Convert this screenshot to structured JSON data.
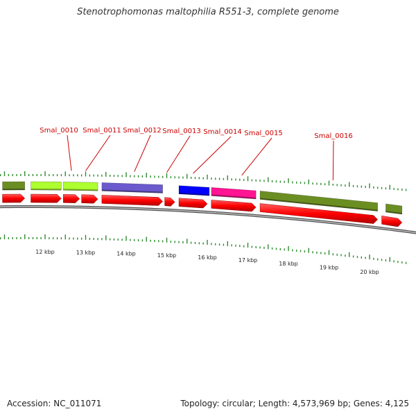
{
  "title": "Stenotrophomonas maltophilia R551-3, complete genome",
  "accession": "Accession: NC_011071",
  "summary": "Topology: circular; Length: 4,573,969 bp; Genes: 4,125",
  "colors": {
    "gene_label": "#cc0000",
    "cds_forward": "#ff0000",
    "ticks": "#2e8b2e",
    "backbone": "#888888",
    "olive": "#6b8e23",
    "lime": "#adff2f",
    "slate": "#6a5acd",
    "blue": "#0000ff",
    "pink": "#ff1493"
  },
  "gene_labels": [
    {
      "name": "Smal_0010",
      "kbp": 12.65
    },
    {
      "name": "Smal_0011",
      "kbp": 13.0
    },
    {
      "name": "Smal_0012",
      "kbp": 14.2
    },
    {
      "name": "Smal_0013",
      "kbp": 15.0
    },
    {
      "name": "Smal_0014",
      "kbp": 15.65
    },
    {
      "name": "Smal_0015",
      "kbp": 16.85
    },
    {
      "name": "Smal_0016",
      "kbp": 19.1
    }
  ],
  "kbp_ticks": [
    "12 kbp",
    "13 kbp",
    "14 kbp",
    "15 kbp",
    "16 kbp",
    "17 kbp",
    "18 kbp",
    "19 kbp",
    "20 kbp"
  ],
  "cds_blocks": [
    {
      "start": 10.95,
      "end": 11.5
    },
    {
      "start": 11.65,
      "end": 12.4
    },
    {
      "start": 12.45,
      "end": 12.85
    },
    {
      "start": 12.9,
      "end": 13.3
    },
    {
      "start": 13.4,
      "end": 14.9
    },
    {
      "start": 14.95,
      "end": 15.2
    },
    {
      "start": 15.3,
      "end": 16.0
    },
    {
      "start": 16.1,
      "end": 17.2
    },
    {
      "start": 17.3,
      "end": 20.2
    },
    {
      "start": 20.3,
      "end": 20.8
    }
  ],
  "feature_blocks": [
    {
      "start": 10.95,
      "end": 11.5,
      "color": "olive"
    },
    {
      "start": 11.65,
      "end": 12.4,
      "color": "lime"
    },
    {
      "start": 12.45,
      "end": 13.3,
      "color": "lime"
    },
    {
      "start": 13.4,
      "end": 14.9,
      "color": "slate"
    },
    {
      "start": 15.3,
      "end": 16.05,
      "color": "blue"
    },
    {
      "start": 16.1,
      "end": 17.2,
      "color": "pink"
    },
    {
      "start": 17.3,
      "end": 20.2,
      "color": "olive"
    },
    {
      "start": 20.4,
      "end": 20.8,
      "color": "olive"
    }
  ]
}
